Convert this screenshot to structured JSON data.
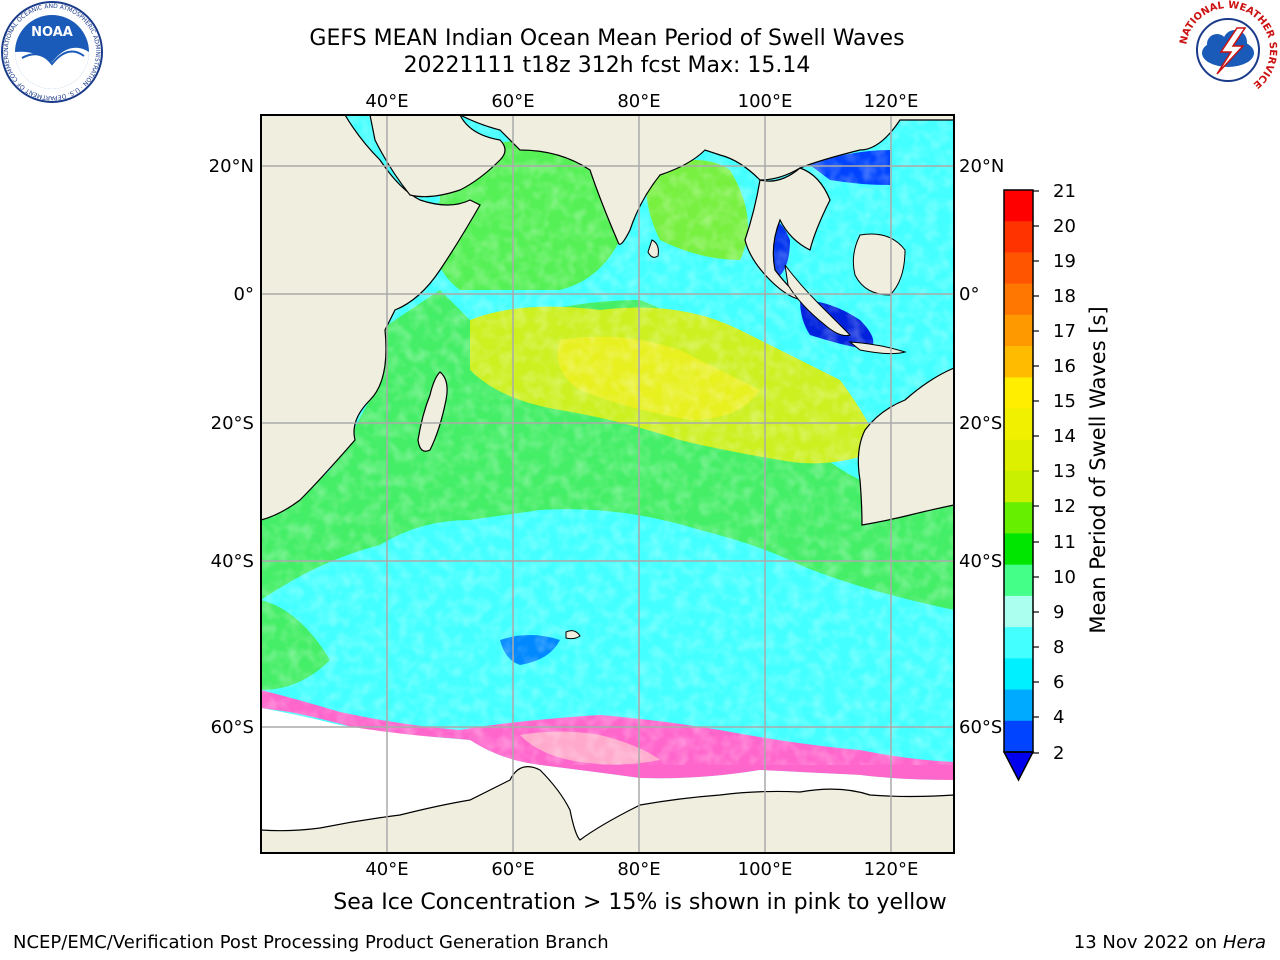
{
  "title": {
    "line1": "GEFS MEAN Indian Ocean Mean Period of Swell Waves",
    "line2": "20221111 t18z 312h fcst   Max: 15.14"
  },
  "map": {
    "top_lon_labels": [
      "40°E",
      "60°E",
      "80°E",
      "100°E",
      "120°E"
    ],
    "bottom_lon_labels": [
      "40°E",
      "60°E",
      "80°E",
      "100°E",
      "120°E"
    ],
    "left_lat_labels": [
      "20°N",
      "0°",
      "20°S",
      "40°S",
      "60°S"
    ],
    "right_lat_labels": [
      "20°N",
      "0°",
      "20°S",
      "40°S",
      "60°S"
    ],
    "land_color": "#efeedf",
    "ice_colors": [
      "#ff66cc",
      "#ffaa44",
      "#ffee44"
    ]
  },
  "colorbar": {
    "label": "Mean Period of Swell Waves [s]",
    "ticks": [
      "21",
      "20",
      "19",
      "18",
      "17",
      "16",
      "15",
      "14",
      "13",
      "12",
      "11",
      "10",
      "9",
      "8",
      "6",
      "4",
      "2"
    ],
    "colors": [
      "#ff0000",
      "#ff3300",
      "#ff5500",
      "#ff7700",
      "#ff9900",
      "#ffbb00",
      "#ffee00",
      "#f0f000",
      "#ddf000",
      "#c8f000",
      "#66f000",
      "#00e600",
      "#44ff88",
      "#aaffee",
      "#44ffff",
      "#00f0ff",
      "#00aaff",
      "#0044ff",
      "#0000ee"
    ]
  },
  "caption": "Sea Ice Concentration > 15% is shown in pink to yellow",
  "credit_left": "NCEP/EMC/Verification Post Processing Product Generation Branch",
  "credit_right_date": "13 Nov 2022 on",
  "credit_right_machine": "Hera",
  "logos": {
    "noaa_text": "NOAA",
    "noaa_ring": "NATIONAL OCEANIC AND ATMOSPHERIC ADMINISTRATION · U.S. DEPARTMENT OF COMMERCE",
    "nws_ring": "NATIONAL WEATHER SERVICE"
  }
}
